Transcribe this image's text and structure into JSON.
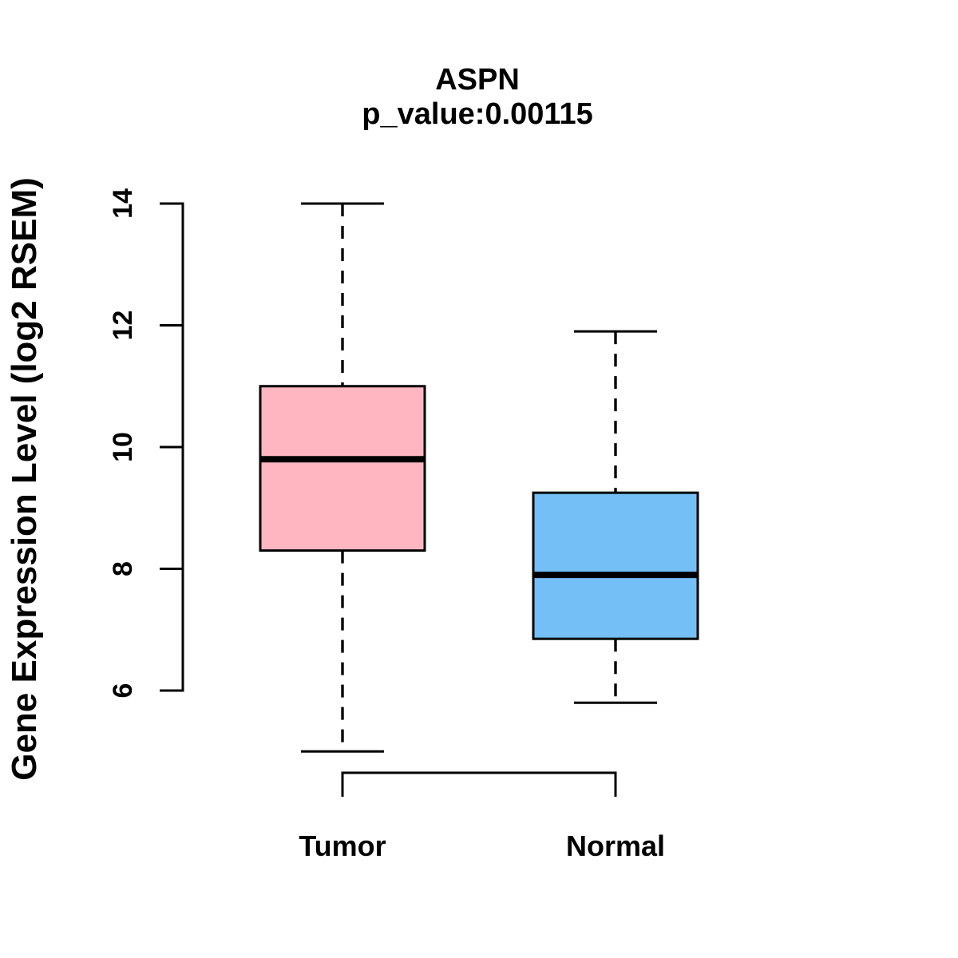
{
  "chart_data": {
    "type": "boxplot",
    "title": "ASPN",
    "subtitle": "p_value:0.00115",
    "ylabel": "Gene Expression Level (log2 RSEM)",
    "yticks": [
      6,
      8,
      10,
      12,
      14
    ],
    "ylim": [
      4.6,
      14.2
    ],
    "grid": false,
    "categories": [
      "Tumor",
      "Normal"
    ],
    "series": [
      {
        "name": "Tumor",
        "color": "#FFB6C1",
        "min": 5.0,
        "q1": 8.3,
        "median": 9.8,
        "q3": 11.0,
        "max": 14.0
      },
      {
        "name": "Normal",
        "color": "#74BFF5",
        "min": 5.8,
        "q1": 6.85,
        "median": 7.9,
        "q3": 9.25,
        "max": 11.9
      }
    ],
    "stroke_color": "#000000",
    "background_color": "#FFFFFF",
    "whisker_style": "dashed"
  }
}
